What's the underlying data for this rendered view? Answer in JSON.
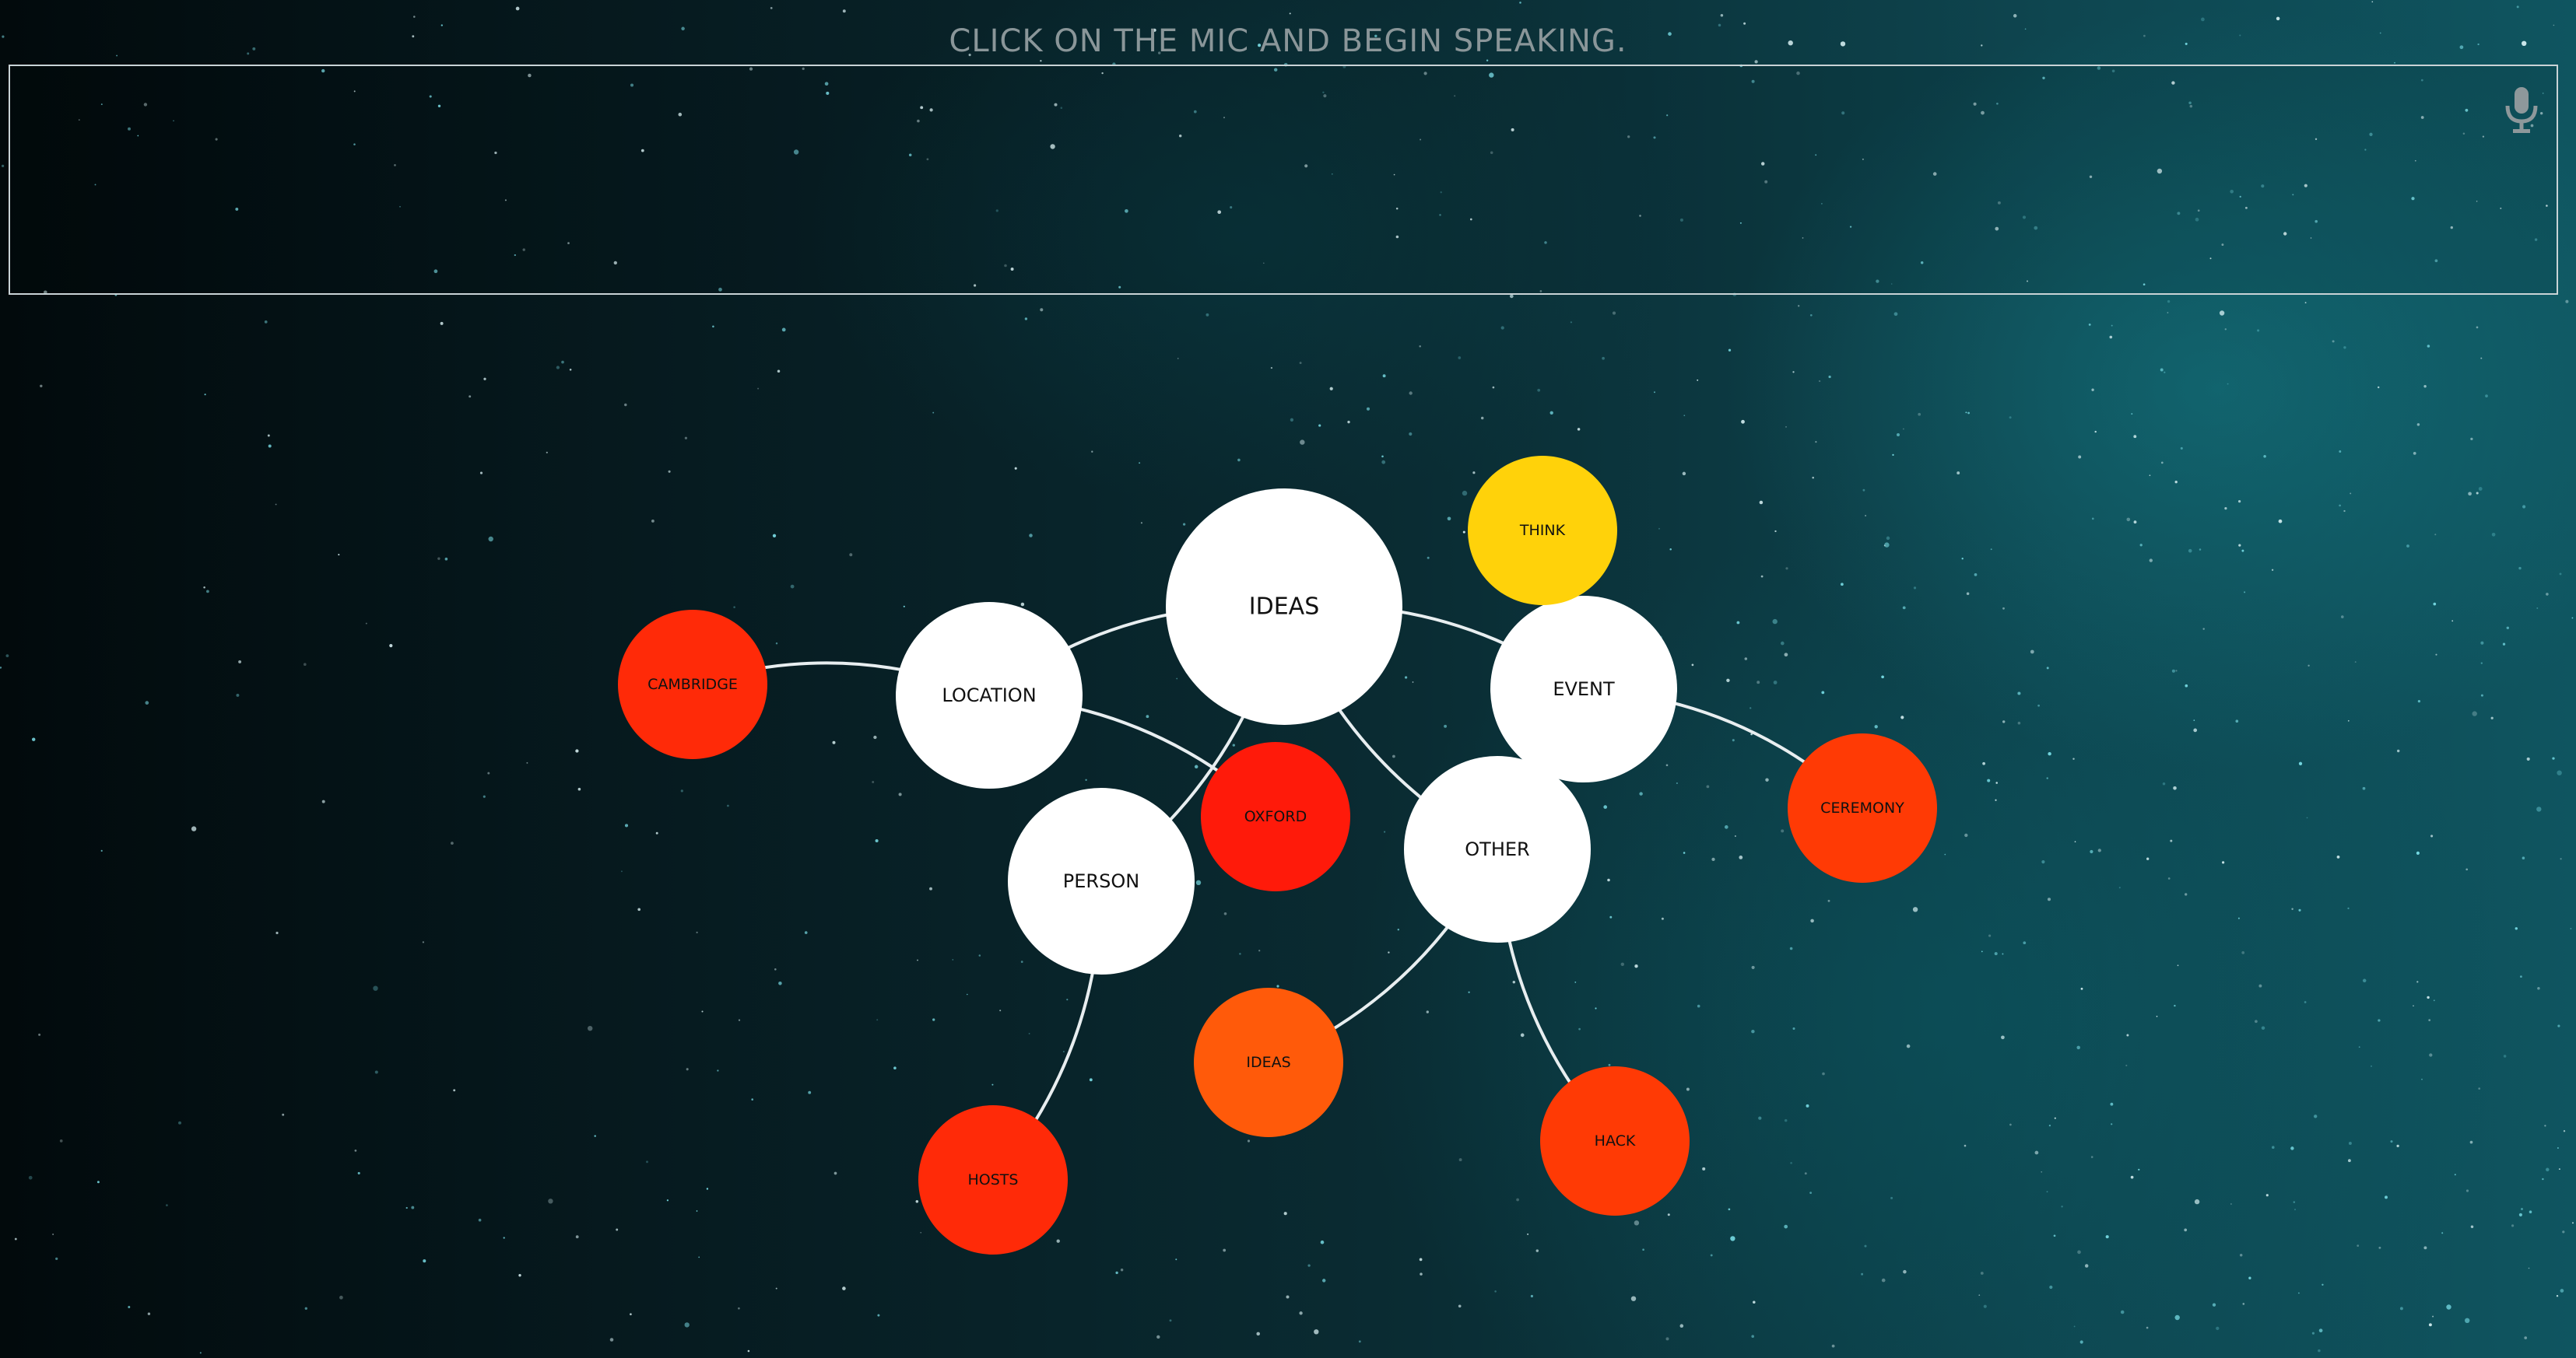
{
  "prompt": "CLICK ON THE MIC AND BEGIN SPEAKING.",
  "transcript": {
    "text": ""
  },
  "mic": {
    "icon": "microphone-icon"
  },
  "colors": {
    "primary_node": "#ffffff",
    "link": "#e8eef0",
    "red": "#ff1a0a",
    "red_orange": "#ff2e05",
    "orange": "#ff4a05",
    "orange_light": "#ff5e0a",
    "yellow": "#ffd20a"
  },
  "graph": {
    "nodes": [
      {
        "id": "ideas",
        "label": "IDEAS",
        "kind": "primary",
        "color": "#ffffff"
      },
      {
        "id": "location",
        "label": "LOCATION",
        "kind": "primary",
        "color": "#ffffff"
      },
      {
        "id": "event",
        "label": "EVENT",
        "kind": "primary",
        "color": "#ffffff"
      },
      {
        "id": "person",
        "label": "PERSON",
        "kind": "primary",
        "color": "#ffffff"
      },
      {
        "id": "other",
        "label": "OTHER",
        "kind": "primary",
        "color": "#ffffff"
      },
      {
        "id": "think",
        "label": "THINK",
        "kind": "leaf",
        "color": "#ffd20a"
      },
      {
        "id": "cambridge",
        "label": "CAMBRIDGE",
        "kind": "leaf",
        "color": "#ff2a08"
      },
      {
        "id": "oxford",
        "label": "OXFORD",
        "kind": "leaf",
        "color": "#ff1a0a"
      },
      {
        "id": "ceremony",
        "label": "CEREMONY",
        "kind": "leaf",
        "color": "#ff3a05"
      },
      {
        "id": "ideas-leaf",
        "label": "IDEAS",
        "kind": "leaf",
        "color": "#ff5a0a"
      },
      {
        "id": "hosts",
        "label": "HOSTS",
        "kind": "leaf",
        "color": "#ff2a08"
      },
      {
        "id": "hack",
        "label": "HACK",
        "kind": "leaf",
        "color": "#ff3a05"
      }
    ],
    "links": [
      {
        "source": "ideas",
        "target": "location"
      },
      {
        "source": "ideas",
        "target": "event"
      },
      {
        "source": "ideas",
        "target": "other"
      },
      {
        "source": "ideas",
        "target": "person"
      },
      {
        "source": "location",
        "target": "cambridge"
      },
      {
        "source": "location",
        "target": "oxford"
      },
      {
        "source": "event",
        "target": "think"
      },
      {
        "source": "event",
        "target": "ceremony"
      },
      {
        "source": "other",
        "target": "think"
      },
      {
        "source": "other",
        "target": "ideas-leaf"
      },
      {
        "source": "other",
        "target": "hack"
      },
      {
        "source": "person",
        "target": "hosts"
      }
    ]
  }
}
